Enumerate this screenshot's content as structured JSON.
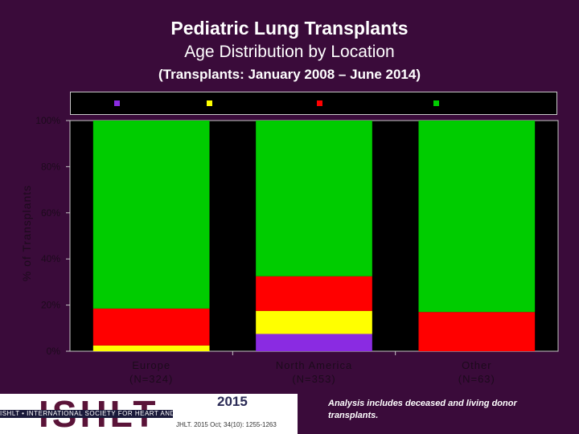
{
  "chart_data": {
    "type": "bar",
    "stacked": true,
    "title": "Pediatric Lung Transplants",
    "subtitle": "Age Distribution by Location",
    "subtitle2": "(Transplants: January 2008 – June 2014)",
    "ylabel": "% of Transplants",
    "ylim": [
      0,
      100
    ],
    "yticks": [
      "0%",
      "20%",
      "40%",
      "60%",
      "80%",
      "100%"
    ],
    "categories": [
      "Europe",
      "North America",
      "Other"
    ],
    "category_counts": [
      "(N=324)",
      "(N=353)",
      "(N=63)"
    ],
    "legend": "top",
    "series": [
      {
        "color": "#8a2be2",
        "values": [
          0,
          7.5,
          0
        ]
      },
      {
        "color": "#ffff00",
        "values": [
          2.5,
          10,
          0
        ]
      },
      {
        "color": "#ff0000",
        "values": [
          16,
          15,
          17
        ]
      },
      {
        "color": "#00cc00",
        "values": [
          81.5,
          67.5,
          83
        ]
      }
    ],
    "grid": false
  },
  "footer": {
    "logo_text": "ISHLT",
    "org_name": "ISHLT • INTERNATIONAL SOCIETY FOR HEART AND LUNG TRANSPLANTATION",
    "year": "2015",
    "citation": "JHLT. 2015 Oct; 34(10): 1255-1263",
    "note": "Analysis includes deceased and living donor transplants."
  }
}
